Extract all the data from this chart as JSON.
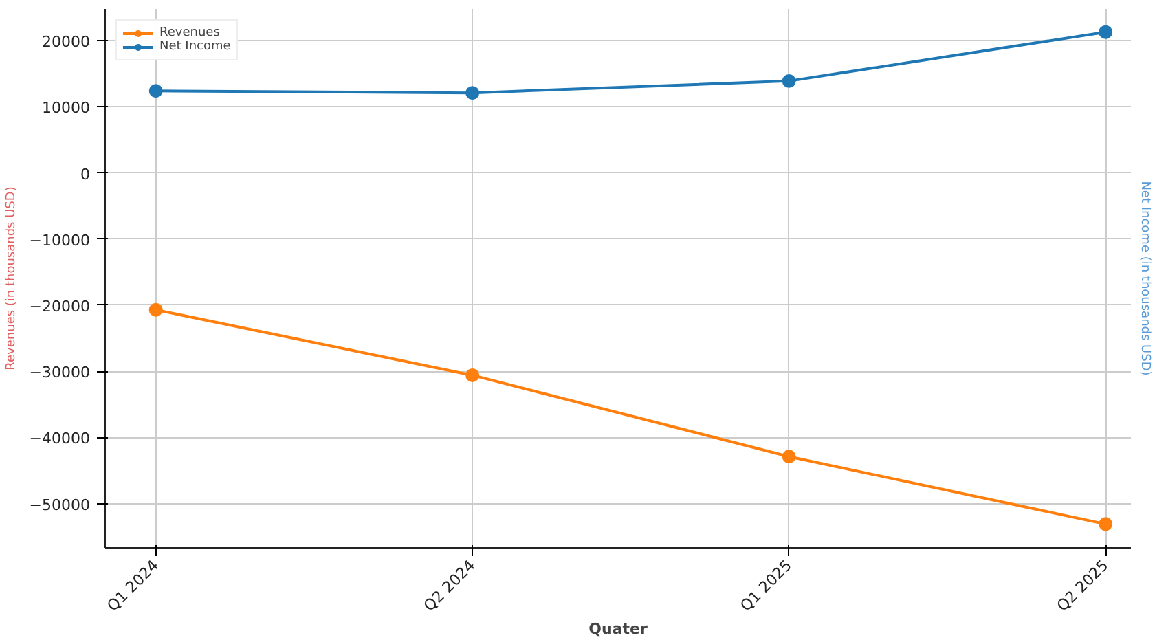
{
  "chart_data": {
    "type": "line",
    "xlabel": "Quater",
    "ylabel": "Revenues (in thousands USD)",
    "y2label": "Net Income (in thousands USD)",
    "categories": [
      "Q1 2024",
      "Q2 2024",
      "Q1 2025",
      "Q2 2025"
    ],
    "series": [
      {
        "name": "Revenues",
        "color": "#ff7f0e",
        "values": [
          -20700,
          -30600,
          -42900,
          -53100
        ]
      },
      {
        "name": "Net Income",
        "color": "#1f77b4",
        "values": [
          12400,
          12100,
          13900,
          21300
        ]
      }
    ],
    "ylim": [
      -56700,
      24800
    ],
    "yticks": [
      -50000,
      -40000,
      -30000,
      -20000,
      -10000,
      0,
      10000,
      20000
    ],
    "grid": true,
    "legend": "top left",
    "marker": "circle",
    "line_style": "solid"
  }
}
